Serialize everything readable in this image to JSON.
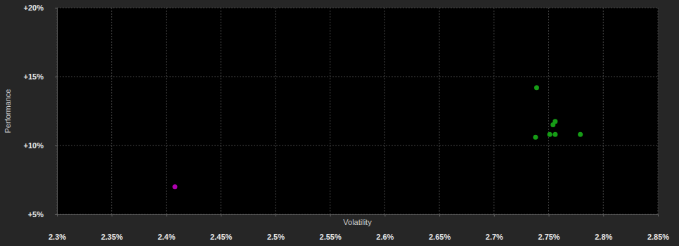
{
  "chart_data": {
    "type": "scatter",
    "x_label": "Volatility",
    "y_label": "Performance",
    "x": [
      2.408,
      2.739,
      2.756,
      2.754,
      2.751,
      2.756,
      2.779,
      2.738
    ],
    "values": [
      7.0,
      14.2,
      11.75,
      11.5,
      10.8,
      10.8,
      10.8,
      10.6
    ],
    "colors": [
      "#b000b0",
      "#169c16",
      "#169c16",
      "#169c16",
      "#169c16",
      "#169c16",
      "#169c16",
      "#169c16"
    ],
    "marker": "circle",
    "grid": true,
    "xlim": [
      2.3,
      2.85
    ],
    "xticks": [
      {
        "value": 2.3,
        "label": "2.3%"
      },
      {
        "value": 2.35,
        "label": "2.35%"
      },
      {
        "value": 2.4,
        "label": "2.4%"
      },
      {
        "value": 2.45,
        "label": "2.45%"
      },
      {
        "value": 2.5,
        "label": "2.5%"
      },
      {
        "value": 2.55,
        "label": "2.55%"
      },
      {
        "value": 2.6,
        "label": "2.6%"
      },
      {
        "value": 2.65,
        "label": "2.65%"
      },
      {
        "value": 2.7,
        "label": "2.7%"
      },
      {
        "value": 2.75,
        "label": "2.75%"
      },
      {
        "value": 2.8,
        "label": "2.8%"
      },
      {
        "value": 2.85,
        "label": "2.85%"
      }
    ],
    "ylim": [
      5,
      20
    ],
    "yticks": [
      {
        "value": 5,
        "label": "+5%"
      },
      {
        "value": 10,
        "label": "+10%"
      },
      {
        "value": 15,
        "label": "+15%"
      },
      {
        "value": 20,
        "label": "+20%"
      }
    ]
  }
}
